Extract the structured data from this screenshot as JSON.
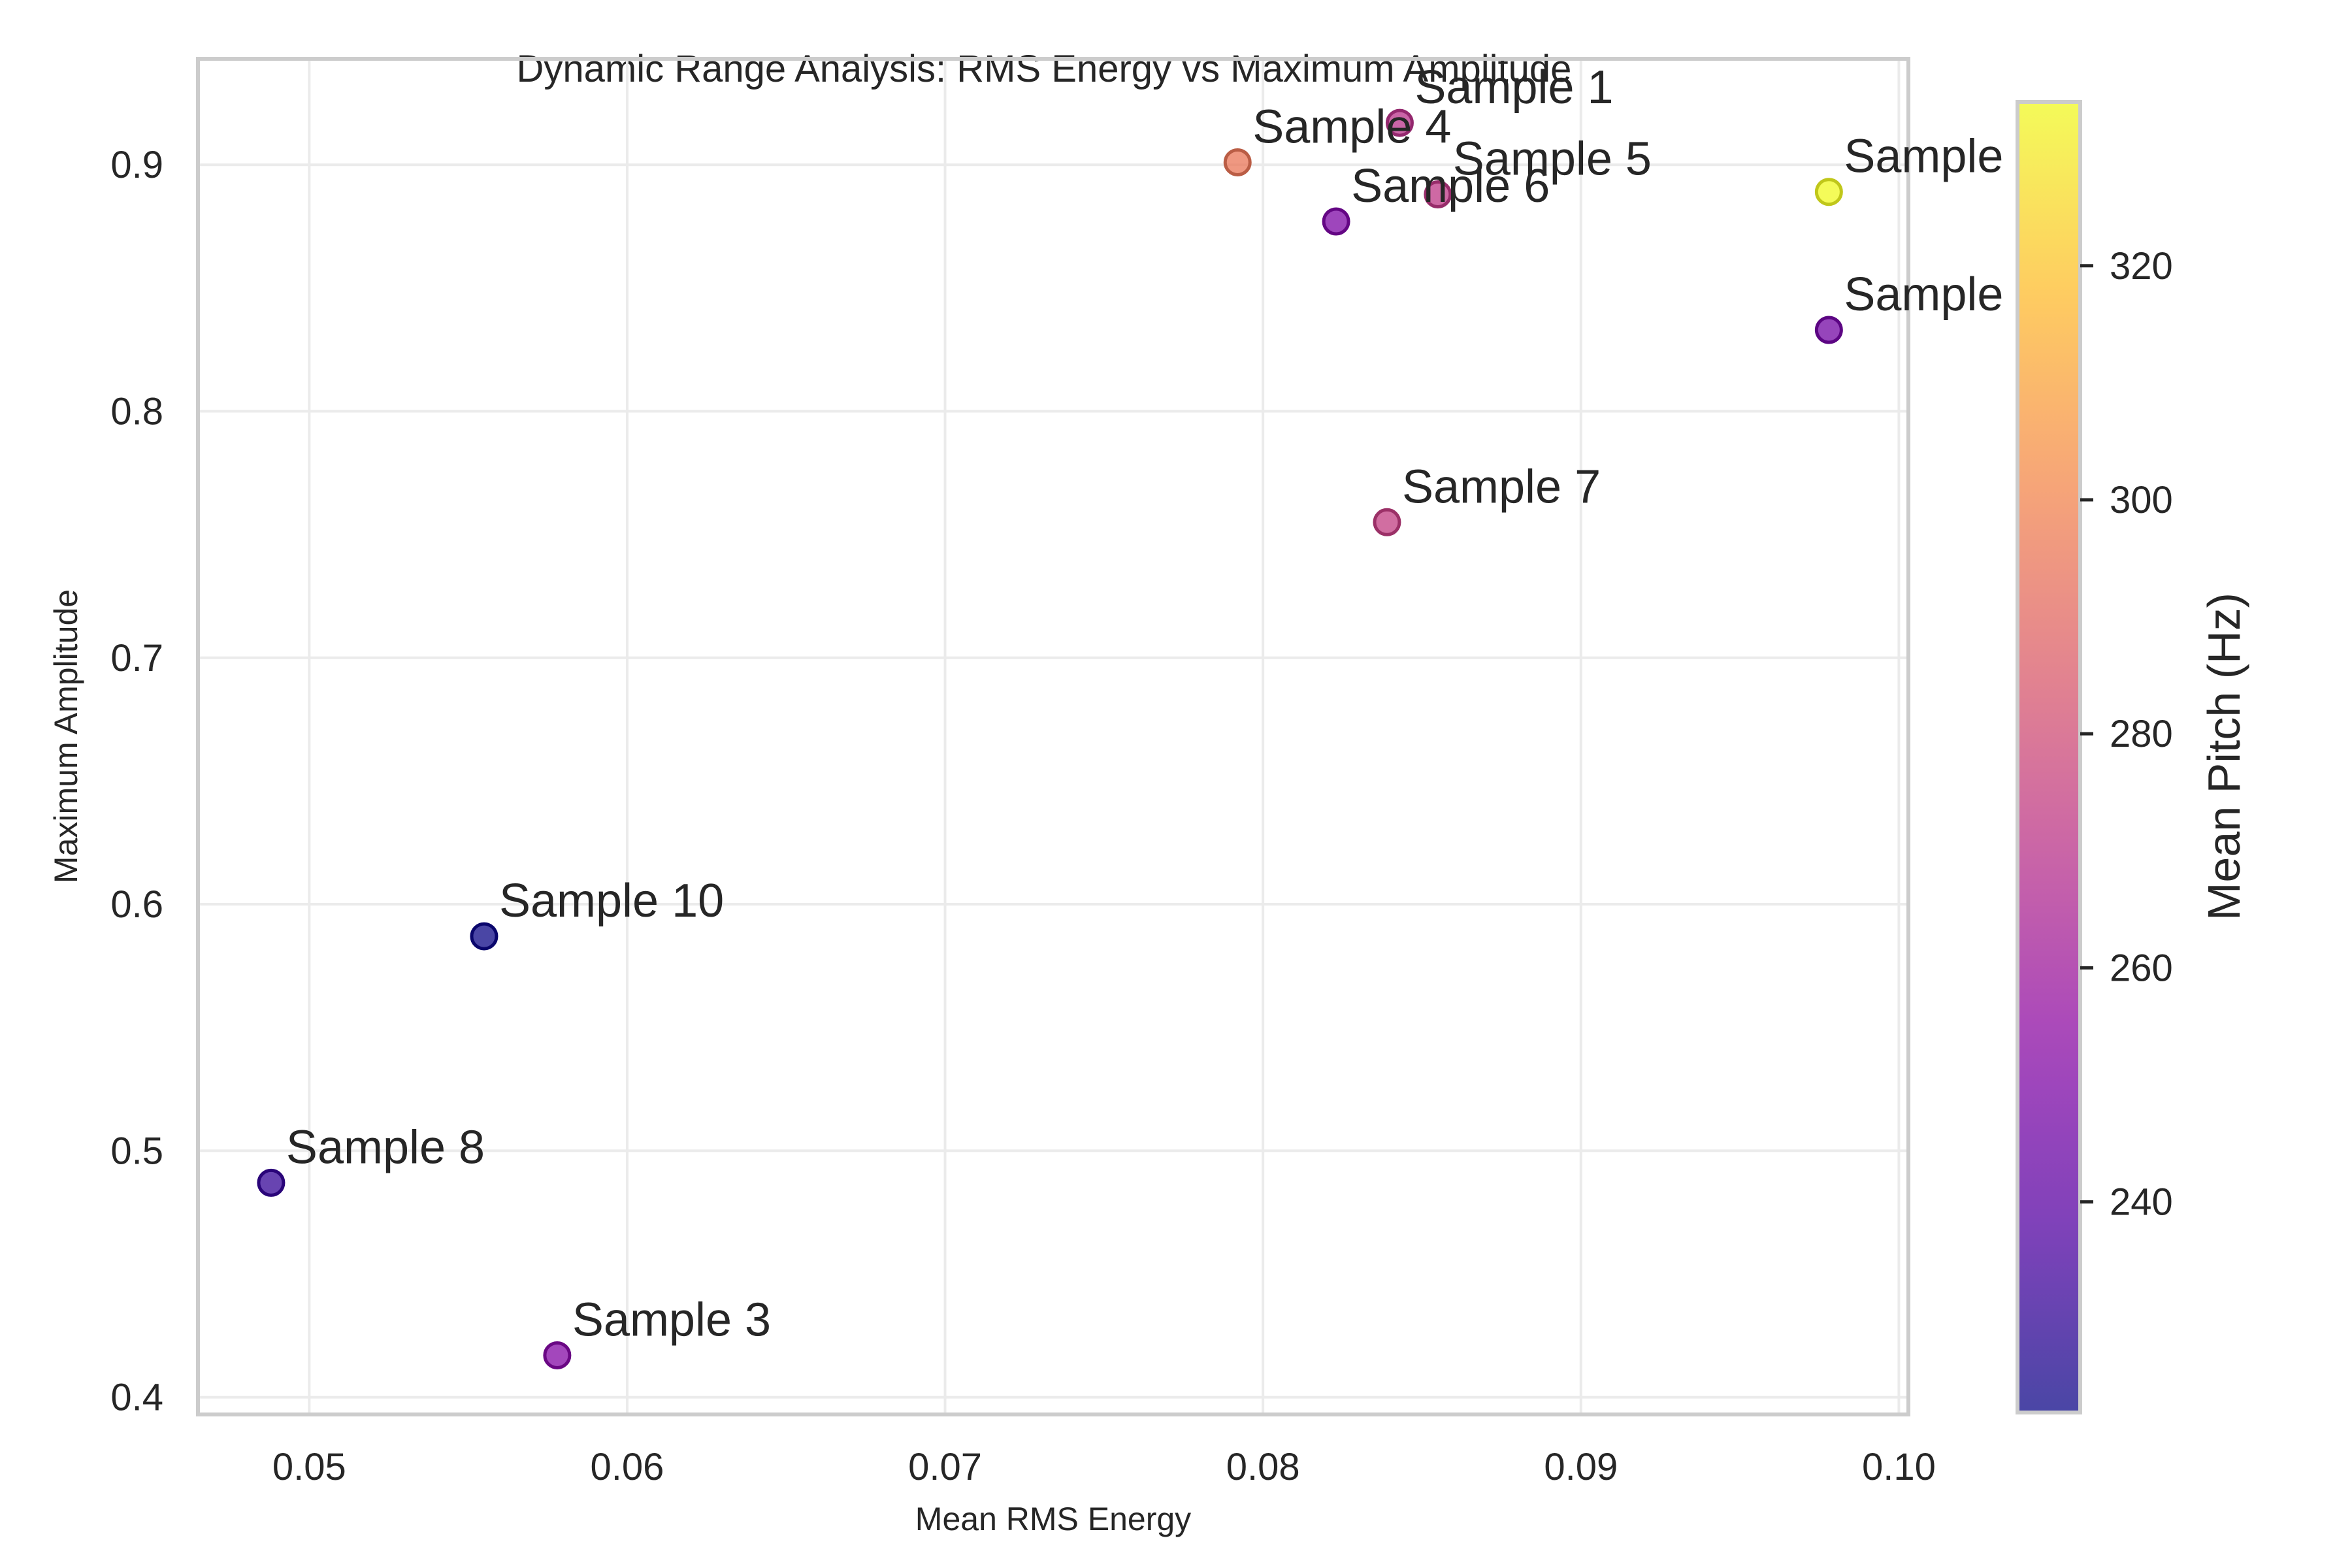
{
  "chart_data": {
    "type": "scatter",
    "title": "Dynamic Range Analysis: RMS Energy vs Maximum Amplitude",
    "xlabel": "Mean RMS Energy",
    "ylabel": "Maximum Amplitude",
    "xlim": [
      0.0465,
      0.1003
    ],
    "ylim": [
      0.393,
      0.943
    ],
    "xticks": [
      0.05,
      0.06,
      0.07,
      0.08,
      0.09,
      0.1
    ],
    "xtick_labels": [
      "0.05",
      "0.06",
      "0.07",
      "0.08",
      "0.09",
      "0.10"
    ],
    "yticks": [
      0.4,
      0.5,
      0.6,
      0.7,
      0.8,
      0.9
    ],
    "ytick_labels": [
      "0.4",
      "0.5",
      "0.6",
      "0.7",
      "0.8",
      "0.9"
    ],
    "grid": true,
    "colormap": "plasma",
    "marker_alpha": 0.75,
    "colorbar": {
      "label": "Mean Pitch (Hz)",
      "range": [
        222,
        334
      ],
      "ticks": [
        240,
        260,
        280,
        300,
        320
      ],
      "tick_labels": [
        "240",
        "260",
        "280",
        "300",
        "320"
      ],
      "placement": "right"
    },
    "points": [
      {
        "label": "Sample 1",
        "x": 0.0843,
        "y": 0.917,
        "pitch": 270
      },
      {
        "label": "Sample 4",
        "x": 0.0792,
        "y": 0.901,
        "pitch": 295
      },
      {
        "label": "Sample 5",
        "x": 0.0855,
        "y": 0.888,
        "pitch": 272
      },
      {
        "label": "Sample 6",
        "x": 0.0823,
        "y": 0.877,
        "pitch": 250
      },
      {
        "label": "Sample",
        "x": 0.0978,
        "y": 0.889,
        "pitch": 334
      },
      {
        "label": "Sample",
        "x": 0.0978,
        "y": 0.833,
        "pitch": 247
      },
      {
        "label": "Sample 7",
        "x": 0.0839,
        "y": 0.755,
        "pitch": 274
      },
      {
        "label": "Sample 10",
        "x": 0.0555,
        "y": 0.587,
        "pitch": 222
      },
      {
        "label": "Sample 8",
        "x": 0.0488,
        "y": 0.487,
        "pitch": 231
      },
      {
        "label": "Sample 3",
        "x": 0.0578,
        "y": 0.417,
        "pitch": 252
      }
    ]
  }
}
